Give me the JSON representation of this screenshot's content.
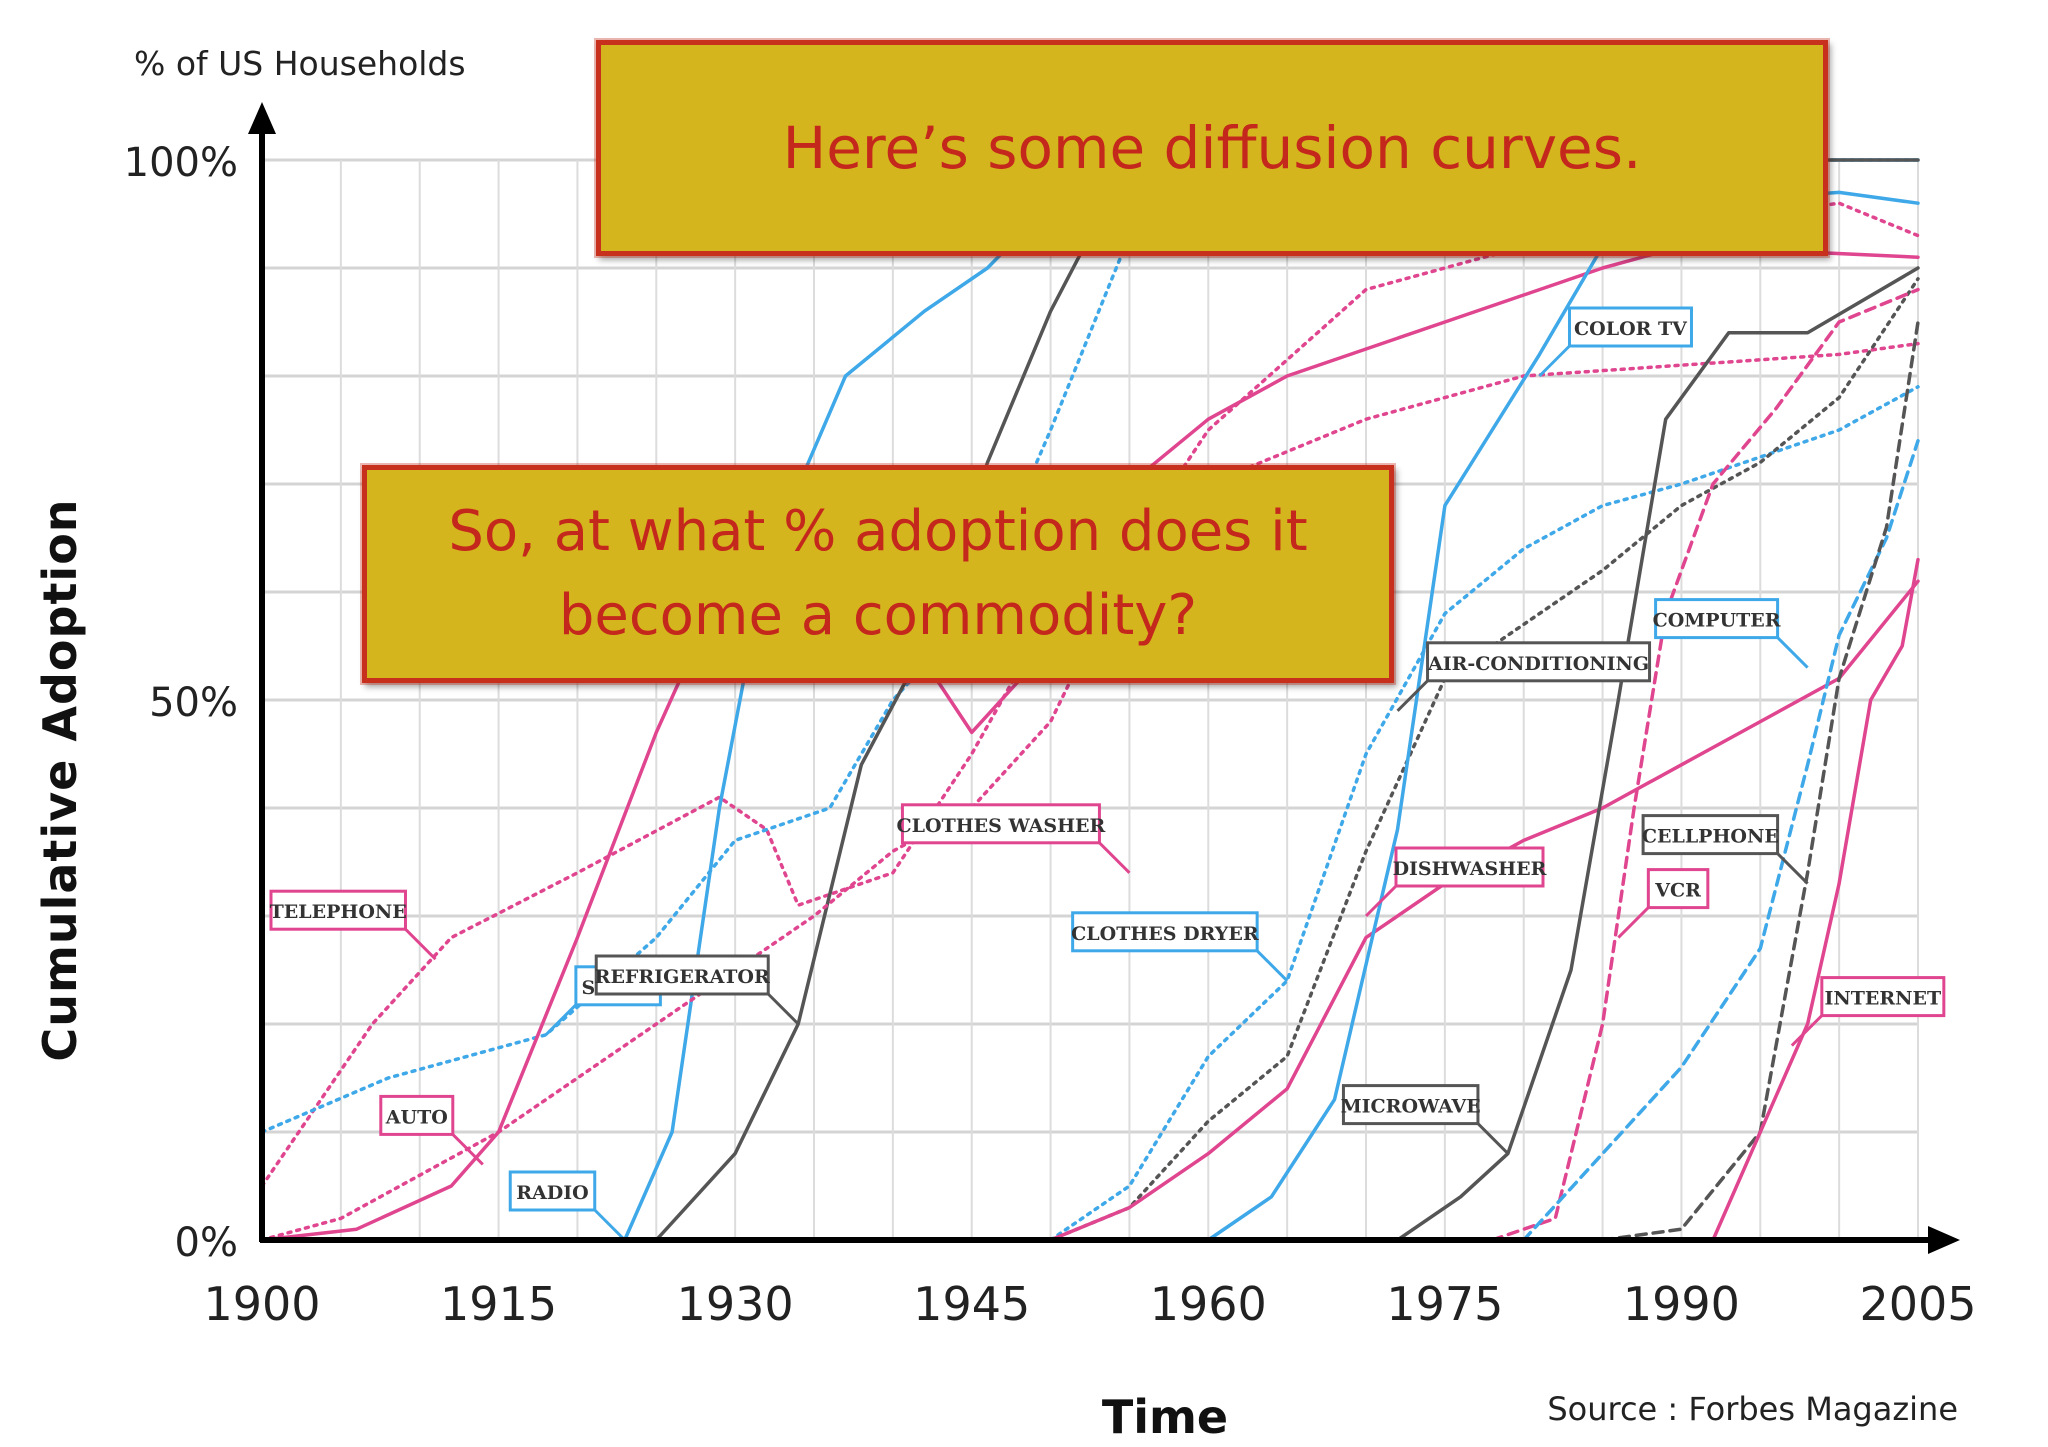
{
  "header": {
    "y_units_label": "% of US Households"
  },
  "axes": {
    "ylabel": "Cumulative Adoption",
    "xlabel": "Time",
    "y_tick_labels": [
      "0%",
      "50%",
      "100%"
    ],
    "x_tick_labels": [
      "1900",
      "1915",
      "1930",
      "1945",
      "1960",
      "1975",
      "1990",
      "2005"
    ]
  },
  "source": "Source : Forbes Magazine",
  "callouts": {
    "top": "Here’s some diffusion curves.",
    "middle": "So, at what % adoption does it become a commodity?"
  },
  "colors": {
    "pink": "#e0458f",
    "blue": "#3ea8e8",
    "gray": "#555555",
    "light_pink": "#f2a6c8",
    "light_blue": "#a9d8f5",
    "callout_fill": "#d5b51e",
    "callout_border": "#c7301c"
  },
  "chart_data": {
    "type": "line",
    "title": "",
    "xlabel": "Time",
    "ylabel": "Cumulative Adoption",
    "xlim": [
      1900,
      2005
    ],
    "ylim": [
      0,
      100
    ],
    "x_ticks": [
      1900,
      1915,
      1930,
      1945,
      1960,
      1975,
      1990,
      2005
    ],
    "y_ticks": [
      0,
      50,
      100
    ],
    "grid": true,
    "series": [
      {
        "name": "TELEPHONE",
        "color": "#e0458f",
        "dash": "dotted",
        "points": [
          [
            1900,
            5
          ],
          [
            1907,
            20
          ],
          [
            1912,
            28
          ],
          [
            1920,
            34
          ],
          [
            1929,
            41
          ],
          [
            1932,
            38
          ],
          [
            1934,
            31
          ],
          [
            1940,
            34
          ],
          [
            1945,
            45
          ],
          [
            1950,
            58
          ],
          [
            1955,
            64
          ],
          [
            1960,
            75
          ],
          [
            1970,
            88
          ],
          [
            1980,
            92
          ],
          [
            1990,
            94
          ],
          [
            2000,
            96
          ],
          [
            2005,
            93
          ]
        ]
      },
      {
        "name": "STOVE",
        "color": "#3ea8e8",
        "dash": "dotted",
        "points": [
          [
            1900,
            10
          ],
          [
            1908,
            15
          ],
          [
            1918,
            19
          ],
          [
            1925,
            28
          ],
          [
            1930,
            37
          ],
          [
            1936,
            40
          ],
          [
            1940,
            50
          ],
          [
            1945,
            58
          ],
          [
            1950,
            75
          ],
          [
            1955,
            93
          ],
          [
            1958,
            100
          ],
          [
            2005,
            100
          ]
        ]
      },
      {
        "name": "AUTO",
        "color": "#e0458f",
        "dash": "solid",
        "points": [
          [
            1900,
            0
          ],
          [
            1906,
            1
          ],
          [
            1912,
            5
          ],
          [
            1915,
            10
          ],
          [
            1920,
            28
          ],
          [
            1925,
            47
          ],
          [
            1929,
            60
          ],
          [
            1932,
            52
          ],
          [
            1936,
            60
          ],
          [
            1940,
            58
          ],
          [
            1945,
            47
          ],
          [
            1950,
            55
          ],
          [
            1955,
            70
          ],
          [
            1960,
            76
          ],
          [
            1965,
            80
          ],
          [
            1975,
            85
          ],
          [
            1985,
            90
          ],
          [
            1990,
            92
          ],
          [
            2005,
            91
          ]
        ]
      },
      {
        "name": "RADIO",
        "color": "#3ea8e8",
        "dash": "solid",
        "points": [
          [
            1923,
            0
          ],
          [
            1926,
            10
          ],
          [
            1929,
            40
          ],
          [
            1932,
            63
          ],
          [
            1937,
            80
          ],
          [
            1942,
            86
          ],
          [
            1946,
            90
          ],
          [
            1950,
            96
          ],
          [
            1955,
            100
          ],
          [
            2005,
            100
          ]
        ]
      },
      {
        "name": "REFRIGERATOR",
        "color": "#555555",
        "dash": "solid",
        "points": [
          [
            1925,
            0
          ],
          [
            1930,
            8
          ],
          [
            1934,
            20
          ],
          [
            1938,
            44
          ],
          [
            1942,
            55
          ],
          [
            1946,
            72
          ],
          [
            1950,
            86
          ],
          [
            1955,
            100
          ],
          [
            2005,
            100
          ]
        ]
      },
      {
        "name": "CLOTHES WASHER",
        "color": "#e0458f",
        "dash": "dotted",
        "points": [
          [
            1900,
            0
          ],
          [
            1905,
            2
          ],
          [
            1915,
            10
          ],
          [
            1925,
            20
          ],
          [
            1935,
            30
          ],
          [
            1940,
            36
          ],
          [
            1945,
            40
          ],
          [
            1950,
            48
          ],
          [
            1955,
            63
          ],
          [
            1960,
            70
          ],
          [
            1970,
            76
          ],
          [
            1980,
            80
          ],
          [
            1990,
            81
          ],
          [
            2000,
            82
          ],
          [
            2005,
            83
          ]
        ]
      },
      {
        "name": "CLOTHES DRYER",
        "color": "#3ea8e8",
        "dash": "dotted",
        "points": [
          [
            1950,
            0
          ],
          [
            1955,
            5
          ],
          [
            1960,
            17
          ],
          [
            1965,
            24
          ],
          [
            1970,
            45
          ],
          [
            1975,
            58
          ],
          [
            1980,
            64
          ],
          [
            1985,
            68
          ],
          [
            1990,
            70
          ],
          [
            2000,
            75
          ],
          [
            2005,
            79
          ]
        ]
      },
      {
        "name": "AIR-CONDITIONING",
        "color": "#555555",
        "dash": "dotted",
        "points": [
          [
            1950,
            0
          ],
          [
            1955,
            3
          ],
          [
            1960,
            11
          ],
          [
            1965,
            17
          ],
          [
            1970,
            36
          ],
          [
            1975,
            52
          ],
          [
            1980,
            57
          ],
          [
            1985,
            62
          ],
          [
            1990,
            68
          ],
          [
            1995,
            72
          ],
          [
            2000,
            78
          ],
          [
            2005,
            89
          ]
        ]
      },
      {
        "name": "DISHWASHER",
        "color": "#e0458f",
        "dash": "solid",
        "points": [
          [
            1950,
            0
          ],
          [
            1955,
            3
          ],
          [
            1960,
            8
          ],
          [
            1965,
            14
          ],
          [
            1970,
            28
          ],
          [
            1975,
            33
          ],
          [
            1980,
            37
          ],
          [
            1985,
            40
          ],
          [
            1990,
            44
          ],
          [
            1995,
            48
          ],
          [
            2000,
            52
          ],
          [
            2005,
            61
          ]
        ]
      },
      {
        "name": "COLOR TV",
        "color": "#3ea8e8",
        "dash": "solid",
        "points": [
          [
            1960,
            0
          ],
          [
            1964,
            4
          ],
          [
            1968,
            13
          ],
          [
            1972,
            38
          ],
          [
            1975,
            68
          ],
          [
            1978,
            75
          ],
          [
            1981,
            82
          ],
          [
            1985,
            92
          ],
          [
            1990,
            96
          ],
          [
            2000,
            97
          ],
          [
            2005,
            96
          ]
        ]
      },
      {
        "name": "MICROWAVE",
        "color": "#555555",
        "dash": "solid",
        "points": [
          [
            1972,
            0
          ],
          [
            1976,
            4
          ],
          [
            1979,
            8
          ],
          [
            1983,
            25
          ],
          [
            1986,
            50
          ],
          [
            1989,
            76
          ],
          [
            1993,
            84
          ],
          [
            1998,
            84
          ],
          [
            2005,
            90
          ]
        ]
      },
      {
        "name": "VCR",
        "color": "#e0458f",
        "dash": "dashed",
        "points": [
          [
            1978,
            0
          ],
          [
            1982,
            2
          ],
          [
            1985,
            20
          ],
          [
            1987,
            40
          ],
          [
            1989,
            58
          ],
          [
            1992,
            70
          ],
          [
            1996,
            77
          ],
          [
            2000,
            85
          ],
          [
            2005,
            88
          ]
        ]
      },
      {
        "name": "COMPUTER",
        "color": "#3ea8e8",
        "dash": "dashed",
        "points": [
          [
            1980,
            0
          ],
          [
            1985,
            8
          ],
          [
            1990,
            16
          ],
          [
            1995,
            27
          ],
          [
            1998,
            44
          ],
          [
            2000,
            56
          ],
          [
            2003,
            65
          ],
          [
            2005,
            74
          ]
        ]
      },
      {
        "name": "CELLPHONE",
        "color": "#555555",
        "dash": "dashed",
        "points": [
          [
            1985,
            0
          ],
          [
            1990,
            1
          ],
          [
            1995,
            10
          ],
          [
            1998,
            34
          ],
          [
            2000,
            52
          ],
          [
            2003,
            66
          ],
          [
            2005,
            85
          ]
        ]
      },
      {
        "name": "INTERNET",
        "color": "#e0458f",
        "dash": "solid",
        "points": [
          [
            1992,
            0
          ],
          [
            1995,
            10
          ],
          [
            1998,
            20
          ],
          [
            2000,
            33
          ],
          [
            2002,
            50
          ],
          [
            2004,
            55
          ],
          [
            2005,
            63
          ]
        ]
      }
    ],
    "labels": [
      {
        "text": "TELEPHONE",
        "series": "TELEPHONE",
        "anchor": [
          1911,
          26
        ],
        "side": "left"
      },
      {
        "text": "STOVE",
        "series": "STOVE",
        "anchor": [
          1918,
          19
        ],
        "side": "right"
      },
      {
        "text": "AUTO",
        "series": "AUTO",
        "anchor": [
          1914,
          7
        ],
        "side": "left"
      },
      {
        "text": "RADIO",
        "series": "RADIO",
        "anchor": [
          1923,
          0
        ],
        "side": "left"
      },
      {
        "text": "REFRIGERATOR",
        "series": "REFRIGERATOR",
        "anchor": [
          1934,
          20
        ],
        "side": "left"
      },
      {
        "text": "CLOTHES WASHER",
        "series": "CLOTHES WASHER",
        "anchor": [
          1955,
          34
        ],
        "side": "left"
      },
      {
        "text": "CLOTHES DRYER",
        "series": "CLOTHES DRYER",
        "anchor": [
          1965,
          24
        ],
        "side": "left"
      },
      {
        "text": "AIR-CONDITIONING",
        "series": "AIR-CONDITIONING",
        "anchor": [
          1972,
          49
        ],
        "side": "right"
      },
      {
        "text": "DISHWASHER",
        "series": "DISHWASHER",
        "anchor": [
          1970,
          30
        ],
        "side": "right"
      },
      {
        "text": "COLOR TV",
        "series": "COLOR TV",
        "anchor": [
          1981,
          80
        ],
        "side": "right"
      },
      {
        "text": "MICROWAVE",
        "series": "MICROWAVE",
        "anchor": [
          1979,
          8
        ],
        "side": "left"
      },
      {
        "text": "VCR",
        "series": "VCR",
        "anchor": [
          1986,
          28
        ],
        "side": "right"
      },
      {
        "text": "COMPUTER",
        "series": "COMPUTER",
        "anchor": [
          1998,
          53
        ],
        "side": "left"
      },
      {
        "text": "CELLPHONE",
        "series": "CELLPHONE",
        "anchor": [
          1998,
          33
        ],
        "side": "left"
      },
      {
        "text": "INTERNET",
        "series": "INTERNET",
        "anchor": [
          1997,
          18
        ],
        "side": "right"
      }
    ]
  }
}
